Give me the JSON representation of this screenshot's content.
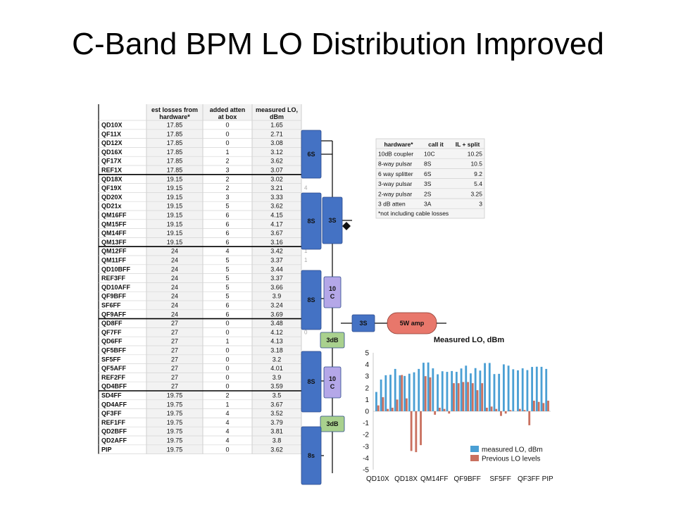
{
  "title": "C-Band BPM LO Distribution Improved",
  "table": {
    "headers": [
      "est losses from hardware*",
      "added atten at box",
      "measured LO, dBm"
    ],
    "rows": [
      [
        "QD10X",
        "17.85",
        "0",
        "1.65"
      ],
      [
        "QF11X",
        "17.85",
        "0",
        "2.71"
      ],
      [
        "QD12X",
        "17.85",
        "0",
        "3.08"
      ],
      [
        "QD16X",
        "17.85",
        "1",
        "3.12"
      ],
      [
        "QF17X",
        "17.85",
        "2",
        "3.62"
      ],
      [
        "REF1X",
        "17.85",
        "3",
        "3.07"
      ],
      [
        "QD18X",
        "19.15",
        "2",
        "3.02"
      ],
      [
        "QF19X",
        "19.15",
        "2",
        "3.21"
      ],
      [
        "QD20X",
        "19.15",
        "3",
        "3.33"
      ],
      [
        "QD21x",
        "19.15",
        "5",
        "3.62"
      ],
      [
        "QM16FF",
        "19.15",
        "6",
        "4.15"
      ],
      [
        "QM15FF",
        "19.15",
        "6",
        "4.17"
      ],
      [
        "QM14FF",
        "19.15",
        "6",
        "3.67"
      ],
      [
        "QM13FF",
        "19.15",
        "6",
        "3.16"
      ],
      [
        "QM12FF",
        "24",
        "4",
        "3.42"
      ],
      [
        "QM11FF",
        "24",
        "5",
        "3.37"
      ],
      [
        "QD10BFF",
        "24",
        "5",
        "3.44"
      ],
      [
        "REF3FF",
        "24",
        "5",
        "3.37"
      ],
      [
        "QD10AFF",
        "24",
        "5",
        "3.66"
      ],
      [
        "QF9BFF",
        "24",
        "5",
        "3.9"
      ],
      [
        "SF6FF",
        "24",
        "6",
        "3.24"
      ],
      [
        "QF9AFF",
        "24",
        "6",
        "3.69"
      ],
      [
        "QD8FF",
        "27",
        "0",
        "3.48"
      ],
      [
        "QF7FF",
        "27",
        "0",
        "4.12"
      ],
      [
        "QD6FF",
        "27",
        "1",
        "4.13"
      ],
      [
        "QF5BFF",
        "27",
        "0",
        "3.18"
      ],
      [
        "SF5FF",
        "27",
        "0",
        "3.2"
      ],
      [
        "QF5AFF",
        "27",
        "0",
        "4.01"
      ],
      [
        "REF2FF",
        "27",
        "0",
        "3.9"
      ],
      [
        "QD4BFF",
        "27",
        "0",
        "3.59"
      ],
      [
        "SD4FF",
        "19.75",
        "2",
        "3.5"
      ],
      [
        "QD4AFF",
        "19.75",
        "1",
        "3.67"
      ],
      [
        "QF3FF",
        "19.75",
        "4",
        "3.52"
      ],
      [
        "REF1FF",
        "19.75",
        "4",
        "3.79"
      ],
      [
        "QD2BFF",
        "19.75",
        "4",
        "3.81"
      ],
      [
        "QD2AFF",
        "19.75",
        "4",
        "3.8"
      ],
      [
        "PIP",
        "19.75",
        "0",
        "3.62"
      ]
    ],
    "side_marks": [
      "1",
      "4",
      "1",
      "1",
      "4",
      "0",
      "0",
      "1"
    ]
  },
  "blocks": {
    "s6": "6S",
    "s8a": "8S",
    "s3a": "3S",
    "s8b": "8S",
    "c10a": [
      "10",
      "C"
    ],
    "db3a": "3dB",
    "s3b": "3S",
    "amp": "5W amp",
    "s8c": "8S",
    "c10b": [
      "10",
      "C"
    ],
    "db3b": "3dB",
    "s8d": "8s"
  },
  "legend_table": {
    "headers": [
      "hardware*",
      "call it",
      "IL + split"
    ],
    "rows": [
      [
        "10dB coupler",
        "10C",
        "10.25"
      ],
      [
        "8-way pulsar",
        "8S",
        "10.5"
      ],
      [
        "6 way splitter",
        "6S",
        "9.2"
      ],
      [
        "3-way pulsar",
        "3S",
        "5.4"
      ],
      [
        "2-way pulsar",
        "2S",
        "3.25"
      ],
      [
        "3 dB atten",
        "3A",
        "3"
      ]
    ],
    "note": "*not including cable losses"
  },
  "colors": {
    "blue_block": "#4472C4",
    "purple_block": "#B4A7E8",
    "green_block": "#A9D18E",
    "amp": "#E8776B",
    "series_measured": "#4A9FD4",
    "series_previous": "#C9705F"
  },
  "chart_data": {
    "type": "bar",
    "title": "Measured LO, dBm",
    "tick_labels": [
      "QD10X",
      "QD18X",
      "QM14FF",
      "QF9BFF",
      "SF5FF",
      "QF3FF",
      "PIP"
    ],
    "ylim": [
      -5,
      5
    ],
    "yticks": [
      5,
      4,
      3,
      2,
      1,
      0,
      -1,
      -2,
      -3,
      -4,
      -5
    ],
    "legend_position": "bottom-right",
    "series": [
      {
        "name": "measured LO, dBm",
        "values": [
          1.65,
          2.71,
          3.08,
          3.12,
          3.62,
          3.07,
          3.02,
          3.21,
          3.33,
          3.62,
          4.15,
          4.17,
          3.67,
          3.16,
          3.42,
          3.37,
          3.44,
          3.37,
          3.66,
          3.9,
          3.24,
          3.69,
          3.48,
          4.12,
          4.13,
          3.18,
          3.2,
          4.01,
          3.9,
          3.59,
          3.5,
          3.67,
          3.52,
          3.79,
          3.81,
          3.8,
          3.62
        ]
      },
      {
        "name": "Previous LO levels",
        "values": [
          0.5,
          1.2,
          0.2,
          0.3,
          1.0,
          3.1,
          1.1,
          -3.4,
          -3.5,
          -2.9,
          3.0,
          2.9,
          -0.3,
          0.3,
          0.2,
          -0.2,
          2.4,
          2.4,
          2.5,
          2.5,
          2.4,
          1.8,
          2.4,
          0.3,
          0.4,
          0.2,
          -0.4,
          -0.2,
          0.1,
          0.0,
          0.2,
          0.1,
          -1.2,
          0.9,
          0.8,
          0.7,
          0.9
        ]
      }
    ]
  }
}
